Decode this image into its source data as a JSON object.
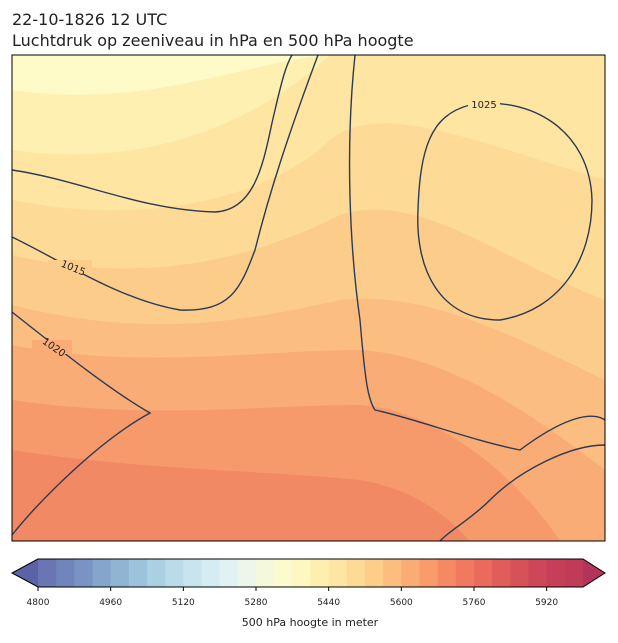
{
  "header": {
    "time": "22-10-1826 12 UTC",
    "title": "Luchtdruk op zeeniveau in hPa en 500 hPa hoogte"
  },
  "map": {
    "isobar_labels": [
      "1015",
      "1020",
      "1025"
    ]
  },
  "colorbar": {
    "label": "500 hPa hoogte in meter",
    "lim": [
      4800,
      6000
    ],
    "ticks": [
      4800,
      4960,
      5120,
      5280,
      5440,
      5600,
      5760,
      5920
    ],
    "colors": [
      "#6a75b4",
      "#7185bd",
      "#7994c4",
      "#84a5cc",
      "#8fb4d4",
      "#9cc3dc",
      "#abd0e3",
      "#badbe9",
      "#c8e4ef",
      "#d6ecf3",
      "#e2f2f4",
      "#ecf6ea",
      "#f5f9dc",
      "#fcfbcd",
      "#fef7c0",
      "#feefb0",
      "#fee5a3",
      "#fdda96",
      "#fdcd8a",
      "#fcbd7f",
      "#fbac74",
      "#f99b6b",
      "#f68963",
      "#f1795f",
      "#ea6a5b",
      "#e15d59",
      "#d75158",
      "#cd4758",
      "#c63f58",
      "#bf3b58"
    ],
    "extend_colors": [
      "#5c62a8",
      "#b23458"
    ]
  }
}
